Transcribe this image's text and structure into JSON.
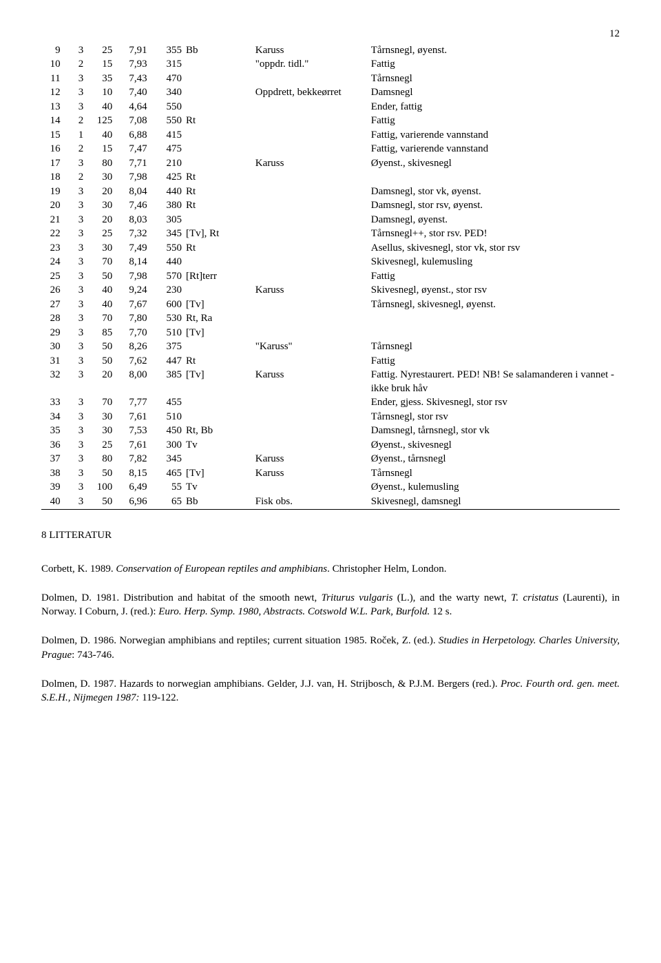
{
  "page_number": "12",
  "table": {
    "col_widths": [
      "4%",
      "4%",
      "5%",
      "6%",
      "6%",
      "12%",
      "20%",
      "43%"
    ],
    "rows": [
      [
        "9",
        "3",
        "25",
        "7,91",
        "355",
        "Bb",
        "Karuss",
        "Tårnsnegl, øyenst."
      ],
      [
        "10",
        "2",
        "15",
        "7,93",
        "315",
        "",
        "\"oppdr. tidl.\"",
        "Fattig"
      ],
      [
        "11",
        "3",
        "35",
        "7,43",
        "470",
        "",
        "",
        "Tårnsnegl"
      ],
      [
        "12",
        "3",
        "10",
        "7,40",
        "340",
        "",
        "Oppdrett, bekkeørret",
        "Damsnegl"
      ],
      [
        "13",
        "3",
        "40",
        "4,64",
        "550",
        "",
        "",
        "Ender, fattig"
      ],
      [
        "14",
        "2",
        "125",
        "7,08",
        "550",
        "Rt",
        "",
        "Fattig"
      ],
      [
        "15",
        "1",
        "40",
        "6,88",
        "415",
        "",
        "",
        "Fattig, varierende vannstand"
      ],
      [
        "16",
        "2",
        "15",
        "7,47",
        "475",
        "",
        "",
        "Fattig, varierende vannstand"
      ],
      [
        "17",
        "3",
        "80",
        "7,71",
        "210",
        "",
        "Karuss",
        "Øyenst., skivesnegl"
      ],
      [
        "18",
        "2",
        "30",
        "7,98",
        "425",
        "Rt",
        "",
        ""
      ],
      [
        "19",
        "3",
        "20",
        "8,04",
        "440",
        "Rt",
        "",
        "Damsnegl, stor vk, øyenst."
      ],
      [
        "20",
        "3",
        "30",
        "7,46",
        "380",
        "Rt",
        "",
        "Damsnegl, stor rsv, øyenst."
      ],
      [
        "21",
        "3",
        "20",
        "8,03",
        "305",
        "",
        "",
        "Damsnegl, øyenst."
      ],
      [
        "22",
        "3",
        "25",
        "7,32",
        "345",
        "[Tv], Rt",
        "",
        "Tårnsnegl++, stor rsv. PED!"
      ],
      [
        "23",
        "3",
        "30",
        "7,49",
        "550",
        "Rt",
        "",
        "Asellus, skivesnegl, stor vk, stor rsv"
      ],
      [
        "24",
        "3",
        "70",
        "8,14",
        "440",
        "",
        "",
        "Skivesnegl, kulemusling"
      ],
      [
        "25",
        "3",
        "50",
        "7,98",
        "570",
        "[Rt]terr",
        "",
        "Fattig"
      ],
      [
        "26",
        "3",
        "40",
        "9,24",
        "230",
        "",
        "Karuss",
        "Skivesnegl, øyenst., stor rsv"
      ],
      [
        "27",
        "3",
        "40",
        "7,67",
        "600",
        "[Tv]",
        "",
        "Tårnsnegl, skivesnegl, øyenst."
      ],
      [
        "28",
        "3",
        "70",
        "7,80",
        "530",
        "Rt, Ra",
        "",
        ""
      ],
      [
        "29",
        "3",
        "85",
        "7,70",
        "510",
        "[Tv]",
        "",
        ""
      ],
      [
        "30",
        "3",
        "50",
        "8,26",
        "375",
        "",
        "\"Karuss\"",
        "Tårnsnegl"
      ],
      [
        "31",
        "3",
        "50",
        "7,62",
        "447",
        "Rt",
        "",
        "Fattig"
      ],
      [
        "32",
        "3",
        "20",
        "8,00",
        "385",
        "[Tv]",
        "Karuss",
        "Fattig. Nyrestaurert. PED! NB! Se salamanderen i vannet - ikke bruk håv"
      ],
      [
        "33",
        "3",
        "70",
        "7,77",
        "455",
        "",
        "",
        "Ender, gjess. Skivesnegl, stor rsv"
      ],
      [
        "34",
        "3",
        "30",
        "7,61",
        "510",
        "",
        "",
        "Tårnsnegl, stor rsv"
      ],
      [
        "35",
        "3",
        "30",
        "7,53",
        "450",
        "Rt, Bb",
        "",
        "Damsnegl, tårnsnegl, stor vk"
      ],
      [
        "36",
        "3",
        "25",
        "7,61",
        "300",
        "Tv",
        "",
        "Øyenst., skivesnegl"
      ],
      [
        "37",
        "3",
        "80",
        "7,82",
        "345",
        "",
        "Karuss",
        "Øyenst., tårnsnegl"
      ],
      [
        "38",
        "3",
        "50",
        "8,15",
        "465",
        "[Tv]",
        "Karuss",
        "Tårnsnegl"
      ],
      [
        "39",
        "3",
        "100",
        "6,49",
        "55",
        "Tv",
        "",
        "Øyenst., kulemusling"
      ],
      [
        "40",
        "3",
        "50",
        "6,96",
        "65",
        "Bb",
        "Fisk obs.",
        "Skivesnegl, damsnegl"
      ]
    ]
  },
  "section_heading": "8 LITTERATUR",
  "refs": [
    {
      "parts": [
        {
          "t": "Corbett, K. 1989. "
        },
        {
          "t": "Conservation of European reptiles and amphibians",
          "i": true
        },
        {
          "t": ". Christopher Helm, London."
        }
      ]
    },
    {
      "parts": [
        {
          "t": "Dolmen, D. 1981. Distribution and habitat of the smooth newt, "
        },
        {
          "t": "Triturus vulgaris",
          "i": true
        },
        {
          "t": " (L.), and the warty newt, "
        },
        {
          "t": "T. cristatus",
          "i": true
        },
        {
          "t": " (Laurenti), in Norway. I Coburn, J. (red.): "
        },
        {
          "t": "Euro. Herp. Symp. 1980, Abstracts. Cotswold W.L. Park, Burfold.",
          "i": true
        },
        {
          "t": " 12 s."
        }
      ]
    },
    {
      "parts": [
        {
          "t": "Dolmen, D. 1986. Norwegian amphibians and reptiles; current situation 1985. Roček, Z. (ed.). "
        },
        {
          "t": "Studies in Herpetology. Charles University, Prague",
          "i": true
        },
        {
          "t": ": 743-746."
        }
      ]
    },
    {
      "parts": [
        {
          "t": "Dolmen, D. 1987. Hazards to norwegian amphibians. Gelder, J.J. van, H. Strijbosch, & P.J.M. Bergers (red.). "
        },
        {
          "t": "Proc. Fourth ord. gen. meet. S.E.H., Nijmegen 1987:",
          "i": true
        },
        {
          "t": " 119-122."
        }
      ]
    }
  ]
}
